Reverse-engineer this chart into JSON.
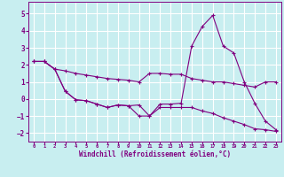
{
  "xlabel": "Windchill (Refroidissement éolien,°C)",
  "background_color": "#c8eef0",
  "line_color": "#800080",
  "grid_color": "#ffffff",
  "xlim": [
    -0.5,
    23.5
  ],
  "ylim": [
    -2.5,
    5.7
  ],
  "yticks": [
    -2,
    -1,
    0,
    1,
    2,
    3,
    4,
    5
  ],
  "xticks": [
    0,
    1,
    2,
    3,
    4,
    5,
    6,
    7,
    8,
    9,
    10,
    11,
    12,
    13,
    14,
    15,
    16,
    17,
    18,
    19,
    20,
    21,
    22,
    23
  ],
  "series": [
    {
      "x": [
        0,
        1,
        2,
        3,
        4,
        5,
        6,
        7,
        8,
        9,
        10,
        11,
        12,
        13,
        14,
        15,
        16,
        17,
        18,
        19,
        20,
        21,
        22,
        23
      ],
      "y": [
        2.2,
        2.2,
        1.75,
        1.65,
        1.5,
        1.4,
        1.3,
        1.2,
        1.15,
        1.1,
        1.0,
        1.5,
        1.5,
        1.45,
        1.45,
        1.2,
        1.1,
        1.0,
        1.0,
        0.9,
        0.8,
        0.7,
        1.0,
        1.0
      ]
    },
    {
      "x": [
        0,
        1,
        2,
        3,
        4,
        5,
        6,
        7,
        8,
        9,
        10,
        11,
        12,
        13,
        14,
        15,
        16,
        17,
        18,
        19,
        20,
        21,
        22,
        23
      ],
      "y": [
        2.2,
        2.2,
        1.75,
        0.45,
        -0.05,
        -0.1,
        -0.3,
        -0.5,
        -0.35,
        -0.4,
        -0.35,
        -1.0,
        -0.3,
        -0.3,
        -0.25,
        3.1,
        4.25,
        4.9,
        3.1,
        2.7,
        1.0,
        -0.25,
        -1.3,
        -1.8
      ]
    },
    {
      "x": [
        0,
        1,
        2,
        3,
        4,
        5,
        6,
        7,
        8,
        9,
        10,
        11,
        12,
        13,
        14,
        15,
        16,
        17,
        18,
        19,
        20,
        21,
        22,
        23
      ],
      "y": [
        2.2,
        2.2,
        1.75,
        0.45,
        -0.05,
        -0.1,
        -0.3,
        -0.5,
        -0.35,
        -0.4,
        -1.0,
        -1.0,
        -0.5,
        -0.5,
        -0.5,
        -0.5,
        -0.7,
        -0.85,
        -1.1,
        -1.3,
        -1.5,
        -1.75,
        -1.8,
        -1.9
      ]
    }
  ]
}
